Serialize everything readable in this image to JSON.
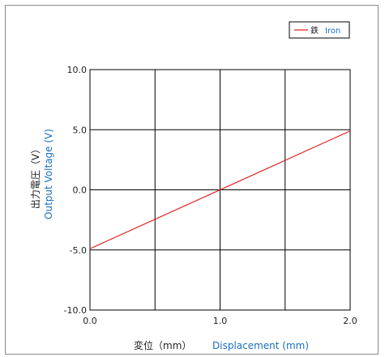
{
  "chart_data": {
    "type": "line",
    "title": "",
    "xlabel_jp": "変位（mm）",
    "xlabel_en": "Displacement (mm)",
    "ylabel_jp": "出力電圧（V）",
    "ylabel_en": "Output Voltage (V)",
    "xlim": [
      0.0,
      2.0
    ],
    "ylim": [
      -10.0,
      10.0
    ],
    "x_ticks": [
      "0.0",
      "1.0",
      "2.0"
    ],
    "y_ticks": [
      "10.0",
      "5.0",
      "0.0",
      "-5.0",
      "-10.0"
    ],
    "grid": true,
    "legend_placement": "top-right",
    "series": [
      {
        "name_jp": "鉄",
        "name_en": "Iron",
        "color": "#e02020",
        "x": [
          0.0,
          2.0
        ],
        "y": [
          -4.9,
          4.9
        ]
      }
    ]
  }
}
